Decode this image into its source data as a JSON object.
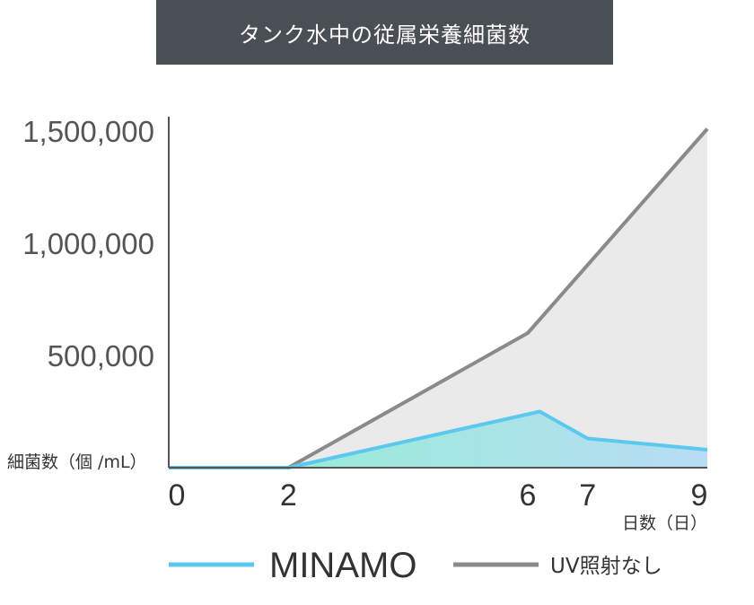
{
  "chart_data": {
    "type": "area",
    "title": "タンク水中の従属栄養細菌数",
    "ylabel": "細菌数（個 /mL）",
    "xlabel": "日数（日）",
    "xlim": [
      0,
      9
    ],
    "ylim": [
      0,
      1500000
    ],
    "x_ticks": [
      "0",
      "2",
      "6",
      "7",
      "9"
    ],
    "y_ticks": [
      {
        "value": 500000,
        "label": "500,000"
      },
      {
        "value": 1000000,
        "label": "1,000,000"
      },
      {
        "value": 1500000,
        "label": "1,500,000"
      }
    ],
    "series": [
      {
        "name": "UV照射なし",
        "color": "#8a8a8a",
        "fill": "#eaeaea",
        "x": [
          0,
          2,
          6,
          9
        ],
        "y": [
          0,
          0,
          600000,
          1510000
        ]
      },
      {
        "name": "MINAMO",
        "color": "#5cc8ee",
        "fill_gradient": [
          "#8ff0d0",
          "#b8dcf4"
        ],
        "x": [
          0,
          2,
          6.2,
          7,
          9
        ],
        "y": [
          0,
          0,
          250000,
          130000,
          80000
        ]
      }
    ],
    "legend_position": "bottom"
  }
}
